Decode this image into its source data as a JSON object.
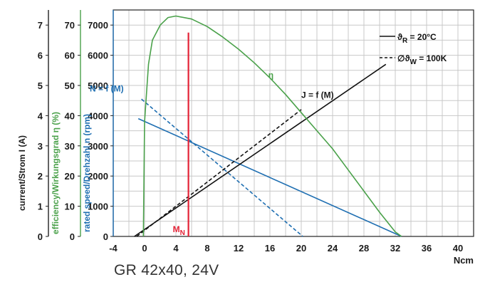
{
  "caption": "GR 42x40, 24V",
  "colors": {
    "efficiency": "#4aa14a",
    "speed": "#1f6fb2",
    "current": "#111111",
    "rated_torque": "#e32236",
    "grid": "#c8c8c8"
  },
  "chart_data": {
    "type": "line",
    "title": "",
    "xlabel": "Ncm",
    "xlim": [
      -4,
      42
    ],
    "x_ticks": [
      "-4",
      "0",
      "4",
      "8",
      "12",
      "16",
      "20",
      "24",
      "28",
      "32",
      "36",
      "40"
    ],
    "grid": true,
    "axes": [
      {
        "id": "current",
        "label": "current/Strom I (A)",
        "range": [
          0,
          7.5
        ],
        "ticks": [
          "0",
          "1",
          "2",
          "3",
          "4",
          "5",
          "6",
          "7"
        ]
      },
      {
        "id": "efficiency",
        "label": "efficiency/Wirkungsgrad η (%)",
        "range": [
          0,
          75
        ],
        "ticks": [
          "0",
          "10",
          "20",
          "30",
          "40",
          "50",
          "60",
          "70"
        ]
      },
      {
        "id": "speed",
        "label": "rated speed/Drehzahl n (rpm)",
        "range": [
          0,
          7500
        ],
        "ticks": [
          "0",
          "1000",
          "2000",
          "3000",
          "4000",
          "5000",
          "6000",
          "7000"
        ]
      }
    ],
    "series": [
      {
        "name": "N = f (M)",
        "style": "solid",
        "axis": "speed",
        "x": [
          -0.8,
          32.8
        ],
        "y": [
          3900,
          0
        ]
      },
      {
        "name": "N = f (M)",
        "style": "dashed",
        "axis": "speed",
        "x": [
          -0.4,
          20.2
        ],
        "y": [
          4550,
          0
        ]
      },
      {
        "name": "J = f (M)",
        "style": "solid",
        "axis": "current",
        "x": [
          -1.3,
          30.8
        ],
        "y": [
          0,
          5.7
        ]
      },
      {
        "name": "J = f (M)",
        "style": "dashed",
        "axis": "current",
        "x": [
          -1.0,
          20.0
        ],
        "y": [
          0,
          4.2
        ]
      },
      {
        "name": "η",
        "style": "solid",
        "axis": "efficiency",
        "x": [
          -0.15,
          0,
          0.5,
          1,
          2,
          3,
          4,
          6,
          8,
          10,
          12,
          14,
          16,
          18,
          20,
          22,
          24,
          26,
          28,
          30,
          32,
          32.8
        ],
        "y": [
          0,
          38,
          57,
          65,
          70,
          72.5,
          73,
          72,
          69.5,
          66,
          62,
          57.5,
          52.5,
          47,
          41,
          35,
          29,
          22,
          15,
          8,
          1.5,
          0
        ]
      }
    ],
    "rated_torque": {
      "label": "M",
      "subscript": "N",
      "x": 5.6,
      "y_top": 6750
    },
    "annotations": [
      {
        "text": "η",
        "x": 15.8,
        "y": 5250
      },
      {
        "text": "N = f (M)",
        "x": -7.0,
        "y": 4800
      },
      {
        "text": "J = f (M)",
        "x": 20.0,
        "y": 4590
      }
    ],
    "legend": {
      "position": "top-right",
      "entries": [
        {
          "style": "solid",
          "symbol": "ϑ",
          "sub": "R",
          "text": " = 20°C"
        },
        {
          "style": "dashed",
          "symbol": "∅ϑ",
          "sub": "W",
          "text": " = 100K"
        }
      ]
    }
  }
}
